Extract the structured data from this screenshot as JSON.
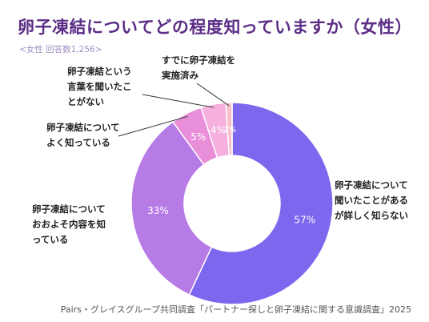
{
  "title": "卵子凍結についてどの程度知っていますか（女性）",
  "subtitle": "<女性  回答数1,256>",
  "source": "Pairs・グレイスグループ共同調査「パートナー探しと卵子凍結に関する意識調査」2025",
  "chart_data": {
    "type": "donut",
    "title": "卵子凍結についてどの程度知っていますか（女性）",
    "categories": [
      "卵子凍結について聞いたことがあるが詳しく知らない",
      "卵子凍結についておおよそ内容を知っている",
      "卵子凍結についてよく知っている",
      "卵子凍結という言葉を聞いたことがない",
      "すでに卵子凍結を実施済み"
    ],
    "values": [
      57,
      33,
      5,
      4,
      1
    ],
    "value_labels": [
      "57%",
      "33%",
      "5%",
      "4%",
      "1%"
    ],
    "colors": [
      "#7b68ee",
      "#b77be6",
      "#e98fd9",
      "#f5b0df",
      "#f7c0c8"
    ],
    "legend": "none"
  },
  "labels": [
    "卵子凍結について\n聞いたことがある\nが詳しく知らない",
    "卵子凍結について\nおおよそ内容を知\nっている",
    "卵子凍結について\nよく知っている",
    "卵子凍結という\n言葉を聞いたこ\nとがない",
    "すでに卵子凍結を\n実施済み"
  ]
}
